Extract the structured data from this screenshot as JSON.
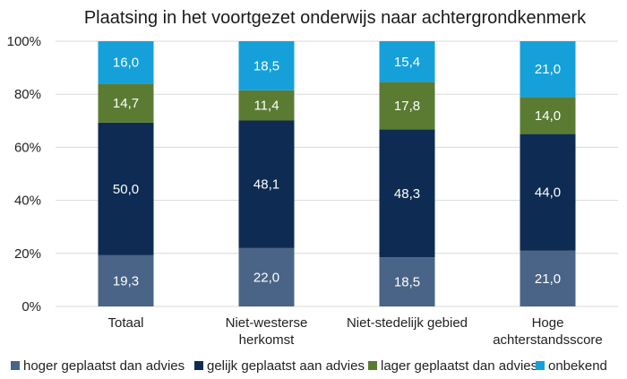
{
  "chart_data": {
    "type": "bar",
    "stacked": true,
    "title": "Plaatsing in het voortgezet onderwijs naar achtergrondkenmerk",
    "categories": [
      "Totaal",
      [
        "Niet-westerse",
        "herkomst"
      ],
      "Niet-stedelijk gebied",
      [
        "Hoge",
        "achterstandsscore"
      ]
    ],
    "series": [
      {
        "name": "hoger geplaatst dan advies",
        "color": "#4a6487",
        "values": [
          19.3,
          22.0,
          18.5,
          21.0
        ],
        "labels": [
          "19,3",
          "22,0",
          "18,5",
          "21,0"
        ]
      },
      {
        "name": "gelijk geplaatst aan advies",
        "color": "#0e2c53",
        "values": [
          50.0,
          48.1,
          48.3,
          44.0
        ],
        "labels": [
          "50,0",
          "48,1",
          "48,3",
          "44,0"
        ]
      },
      {
        "name": "lager geplaatst dan advies",
        "color": "#5b7b32",
        "values": [
          14.7,
          11.4,
          17.8,
          14.0
        ],
        "labels": [
          "14,7",
          "11,4",
          "17,8",
          "14,0"
        ]
      },
      {
        "name": "onbekend",
        "color": "#16a0d9",
        "values": [
          16.0,
          18.5,
          15.4,
          21.0
        ],
        "labels": [
          "16,0",
          "18,5",
          "15,4",
          "21,0"
        ]
      }
    ],
    "ylim": [
      0,
      100
    ],
    "yticks": [
      "0%",
      "20%",
      "40%",
      "60%",
      "80%",
      "100%"
    ],
    "grid": true,
    "legend": "bottom",
    "xlabel": "",
    "ylabel": ""
  }
}
